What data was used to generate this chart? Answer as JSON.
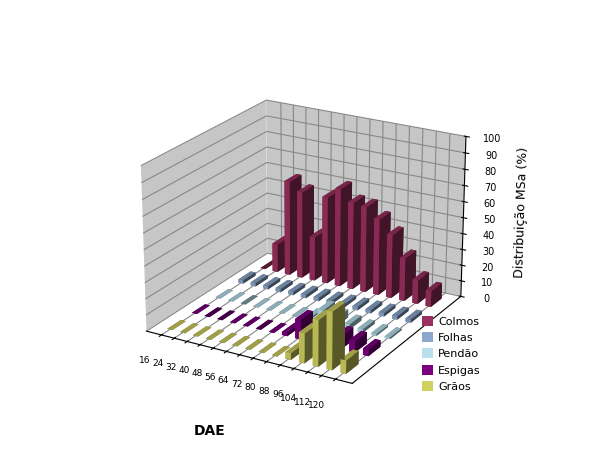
{
  "ylabel": "Distribuição MSa (%)",
  "xlabel": "DAE",
  "dae": [
    16,
    24,
    32,
    40,
    48,
    56,
    64,
    72,
    80,
    88,
    96,
    104,
    112,
    120
  ],
  "series_names": [
    "Colmos",
    "Folhas",
    "Pendão",
    "Espigas",
    "Grãos"
  ],
  "series_values": [
    [
      0,
      18,
      60,
      55,
      28,
      55,
      62,
      55,
      54,
      48,
      40,
      27,
      15,
      10
    ],
    [
      2,
      2,
      2,
      2,
      2,
      2,
      2,
      2,
      2,
      2,
      2,
      2,
      2,
      2
    ],
    [
      0,
      0,
      0,
      0,
      0,
      0,
      0,
      1,
      8,
      5,
      3,
      2,
      1,
      1
    ],
    [
      0,
      0,
      0,
      0,
      0,
      0,
      0,
      2,
      12,
      8,
      8,
      8,
      7,
      4
    ],
    [
      0,
      0,
      0,
      0,
      0,
      0,
      0,
      0,
      0,
      4,
      18,
      28,
      35,
      8
    ]
  ],
  "face_colors": [
    "#9B3060",
    "#8BA8CC",
    "#B8E0EC",
    "#7B0080",
    "#D0D060"
  ],
  "series_y_positions": [
    4,
    3,
    2,
    1,
    0
  ],
  "yticks": [
    0,
    10,
    20,
    30,
    40,
    50,
    60,
    70,
    80,
    90,
    100
  ],
  "bar_width": 3.2,
  "bar_depth": 0.55,
  "elev": 22,
  "azim": -60,
  "pane_color": "#A0A0A0",
  "legend_colors": [
    "#9B3060",
    "#8BA8CC",
    "#B8E0EC",
    "#7B0080",
    "#D0D060"
  ]
}
